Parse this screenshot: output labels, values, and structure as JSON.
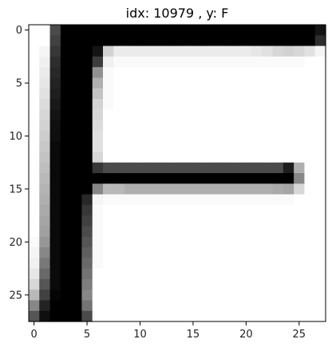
{
  "chart_data": {
    "type": "heatmap",
    "title": "idx: 10979 , y: F",
    "xlabel": "",
    "ylabel": "",
    "colormap": "gray_r",
    "rows": 28,
    "cols": 28,
    "vmin": 0,
    "vmax": 255,
    "xlim": [
      -0.5,
      27.5
    ],
    "ylim": [
      27.5,
      -0.5
    ],
    "xticks": [
      0,
      5,
      10,
      15,
      20,
      25
    ],
    "yticks": [
      0,
      5,
      10,
      15,
      20,
      25
    ],
    "grid": false,
    "legend": "none",
    "values": [
      [
        0,
        0,
        180,
        255,
        255,
        255,
        255,
        255,
        255,
        255,
        255,
        255,
        255,
        255,
        255,
        255,
        255,
        255,
        255,
        255,
        255,
        255,
        255,
        255,
        255,
        255,
        255,
        235
      ],
      [
        0,
        0,
        190,
        255,
        255,
        255,
        255,
        255,
        255,
        255,
        255,
        255,
        255,
        255,
        255,
        255,
        255,
        255,
        255,
        255,
        255,
        255,
        255,
        255,
        255,
        255,
        255,
        210
      ],
      [
        0,
        10,
        200,
        255,
        255,
        255,
        235,
        45,
        20,
        20,
        20,
        20,
        20,
        20,
        20,
        20,
        20,
        20,
        20,
        20,
        20,
        25,
        30,
        40,
        45,
        40,
        30,
        10
      ],
      [
        0,
        15,
        210,
        255,
        255,
        255,
        195,
        15,
        5,
        5,
        5,
        5,
        5,
        5,
        5,
        5,
        5,
        5,
        5,
        5,
        5,
        5,
        5,
        5,
        5,
        5,
        0,
        0
      ],
      [
        0,
        20,
        215,
        255,
        255,
        255,
        110,
        5,
        0,
        0,
        0,
        0,
        0,
        0,
        0,
        0,
        0,
        0,
        0,
        0,
        0,
        0,
        0,
        0,
        0,
        0,
        0,
        0
      ],
      [
        0,
        25,
        220,
        255,
        255,
        255,
        80,
        5,
        0,
        0,
        0,
        0,
        0,
        0,
        0,
        0,
        0,
        0,
        0,
        0,
        0,
        0,
        0,
        0,
        0,
        0,
        0,
        0
      ],
      [
        0,
        30,
        225,
        255,
        255,
        255,
        60,
        5,
        0,
        0,
        0,
        0,
        0,
        0,
        0,
        0,
        0,
        0,
        0,
        0,
        0,
        0,
        0,
        0,
        0,
        0,
        0,
        0
      ],
      [
        0,
        35,
        230,
        255,
        255,
        255,
        45,
        5,
        0,
        0,
        0,
        0,
        0,
        0,
        0,
        0,
        0,
        0,
        0,
        0,
        0,
        0,
        0,
        0,
        0,
        0,
        0,
        0
      ],
      [
        0,
        40,
        235,
        255,
        255,
        255,
        40,
        0,
        0,
        0,
        0,
        0,
        0,
        0,
        0,
        0,
        0,
        0,
        0,
        0,
        0,
        0,
        0,
        0,
        0,
        0,
        0,
        0
      ],
      [
        0,
        45,
        240,
        255,
        255,
        255,
        35,
        0,
        0,
        0,
        0,
        0,
        0,
        0,
        0,
        0,
        0,
        0,
        0,
        0,
        0,
        0,
        0,
        0,
        0,
        0,
        0,
        0
      ],
      [
        0,
        50,
        240,
        255,
        255,
        255,
        30,
        0,
        0,
        0,
        0,
        0,
        0,
        0,
        0,
        0,
        0,
        0,
        0,
        0,
        0,
        0,
        0,
        0,
        0,
        0,
        0,
        0
      ],
      [
        0,
        55,
        245,
        255,
        255,
        255,
        30,
        0,
        0,
        0,
        0,
        0,
        0,
        0,
        0,
        0,
        0,
        0,
        0,
        0,
        0,
        0,
        0,
        0,
        0,
        0,
        0,
        0
      ],
      [
        0,
        60,
        245,
        255,
        255,
        255,
        40,
        0,
        0,
        0,
        0,
        0,
        0,
        0,
        0,
        0,
        0,
        0,
        0,
        0,
        0,
        0,
        0,
        0,
        0,
        0,
        0,
        0
      ],
      [
        0,
        65,
        245,
        255,
        255,
        255,
        200,
        180,
        180,
        180,
        180,
        180,
        180,
        180,
        180,
        180,
        180,
        180,
        180,
        180,
        180,
        180,
        180,
        180,
        225,
        80,
        0,
        0
      ],
      [
        0,
        70,
        245,
        255,
        255,
        255,
        255,
        255,
        255,
        255,
        255,
        255,
        255,
        255,
        255,
        255,
        255,
        255,
        255,
        255,
        255,
        255,
        255,
        255,
        255,
        120,
        0,
        0
      ],
      [
        0,
        75,
        245,
        255,
        255,
        255,
        120,
        70,
        70,
        80,
        80,
        80,
        80,
        80,
        80,
        80,
        80,
        80,
        80,
        80,
        80,
        80,
        80,
        85,
        90,
        40,
        0,
        0
      ],
      [
        0,
        80,
        245,
        255,
        255,
        215,
        10,
        5,
        5,
        5,
        5,
        5,
        5,
        5,
        5,
        5,
        5,
        5,
        5,
        5,
        5,
        5,
        5,
        5,
        5,
        0,
        0,
        0
      ],
      [
        0,
        85,
        245,
        255,
        255,
        200,
        5,
        0,
        0,
        0,
        0,
        0,
        0,
        0,
        0,
        0,
        0,
        0,
        0,
        0,
        0,
        0,
        0,
        0,
        0,
        0,
        0,
        0
      ],
      [
        0,
        90,
        245,
        255,
        255,
        190,
        5,
        0,
        0,
        0,
        0,
        0,
        0,
        0,
        0,
        0,
        0,
        0,
        0,
        0,
        0,
        0,
        0,
        0,
        0,
        0,
        0,
        0
      ],
      [
        0,
        95,
        245,
        255,
        255,
        180,
        5,
        0,
        0,
        0,
        0,
        0,
        0,
        0,
        0,
        0,
        0,
        0,
        0,
        0,
        0,
        0,
        0,
        0,
        0,
        0,
        0,
        0
      ],
      [
        5,
        105,
        245,
        255,
        255,
        170,
        5,
        0,
        0,
        0,
        0,
        0,
        0,
        0,
        0,
        0,
        0,
        0,
        0,
        0,
        0,
        0,
        0,
        0,
        0,
        0,
        0,
        0
      ],
      [
        10,
        120,
        245,
        255,
        255,
        160,
        5,
        0,
        0,
        0,
        0,
        0,
        0,
        0,
        0,
        0,
        0,
        0,
        0,
        0,
        0,
        0,
        0,
        0,
        0,
        0,
        0,
        0
      ],
      [
        15,
        135,
        245,
        255,
        255,
        150,
        5,
        0,
        0,
        0,
        0,
        0,
        0,
        0,
        0,
        0,
        0,
        0,
        0,
        0,
        0,
        0,
        0,
        0,
        0,
        0,
        0,
        0
      ],
      [
        25,
        150,
        245,
        255,
        255,
        140,
        0,
        0,
        0,
        0,
        0,
        0,
        0,
        0,
        0,
        0,
        0,
        0,
        0,
        0,
        0,
        0,
        0,
        0,
        0,
        0,
        0,
        0
      ],
      [
        40,
        170,
        245,
        255,
        255,
        130,
        0,
        0,
        0,
        0,
        0,
        0,
        0,
        0,
        0,
        0,
        0,
        0,
        0,
        0,
        0,
        0,
        0,
        0,
        0,
        0,
        0,
        0
      ],
      [
        70,
        190,
        250,
        255,
        255,
        120,
        0,
        0,
        0,
        0,
        0,
        0,
        0,
        0,
        0,
        0,
        0,
        0,
        0,
        0,
        0,
        0,
        0,
        0,
        0,
        0,
        0,
        0
      ],
      [
        120,
        220,
        255,
        255,
        255,
        140,
        0,
        0,
        0,
        0,
        0,
        0,
        0,
        0,
        0,
        0,
        0,
        0,
        0,
        0,
        0,
        0,
        0,
        0,
        0,
        0,
        0,
        0
      ],
      [
        170,
        240,
        255,
        255,
        255,
        180,
        0,
        0,
        0,
        0,
        0,
        0,
        0,
        0,
        0,
        0,
        0,
        0,
        0,
        0,
        0,
        0,
        0,
        0,
        0,
        0,
        0,
        0
      ]
    ]
  }
}
